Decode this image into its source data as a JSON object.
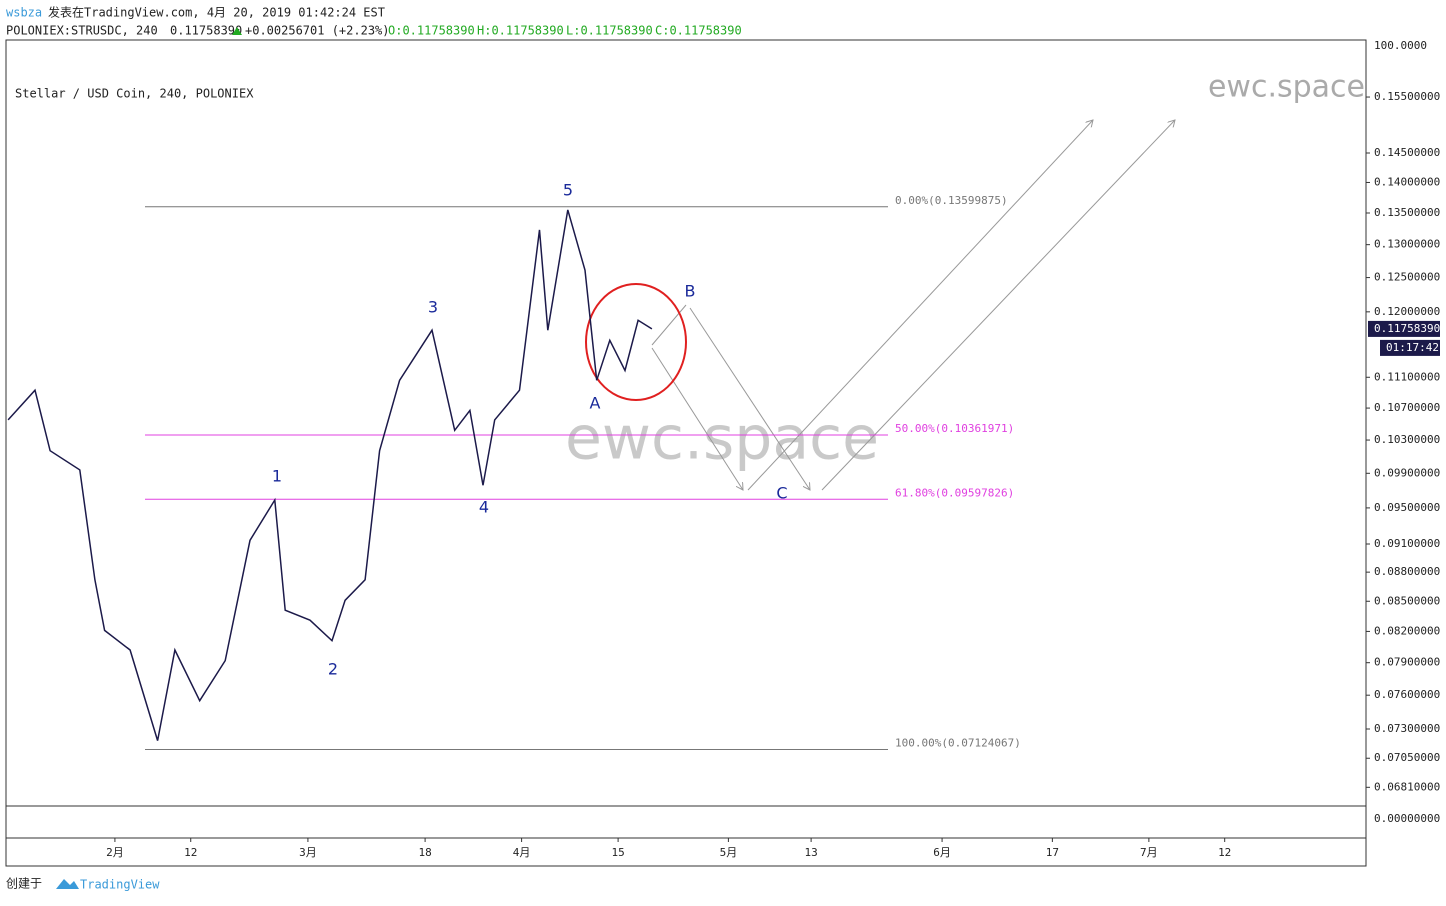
{
  "header": {
    "user": "wsbza",
    "published": "发表在TradingView.com, 4月 20, 2019 01:42:24 EST",
    "symbol": "POLONIEX:STRUSDC, 240",
    "last": "0.11758390",
    "change": "+0.00256701 (+2.23%)",
    "open": "O:0.11758390",
    "high": "H:0.11758390",
    "low": "L:0.11758390",
    "close": "C:0.11758390"
  },
  "chart_data": {
    "type": "line",
    "title": "Stellar / USD Coin, 240, POLONIEX",
    "watermark": "ewc.space",
    "log_scale": true,
    "xlim": [
      16.2,
      213.5
    ],
    "ylim": [
      0.0666,
      0.1659
    ],
    "xticks": [
      {
        "value": 32,
        "label": "2月"
      },
      {
        "value": 43,
        "label": "12"
      },
      {
        "value": 60,
        "label": "3月"
      },
      {
        "value": 77,
        "label": "18"
      },
      {
        "value": 91,
        "label": "4月"
      },
      {
        "value": 105,
        "label": "15"
      },
      {
        "value": 121,
        "label": "5月"
      },
      {
        "value": 133,
        "label": "13"
      },
      {
        "value": 152,
        "label": "6月"
      },
      {
        "value": 168,
        "label": "17"
      },
      {
        "value": 182,
        "label": "7月"
      },
      {
        "value": 193,
        "label": "12"
      }
    ],
    "yticks": [
      {
        "value": 0.155,
        "label": "0.15500000"
      },
      {
        "value": 0.145,
        "label": "0.14500000"
      },
      {
        "value": 0.14,
        "label": "0.14000000"
      },
      {
        "value": 0.135,
        "label": "0.13500000"
      },
      {
        "value": 0.13,
        "label": "0.13000000"
      },
      {
        "value": 0.125,
        "label": "0.12500000"
      },
      {
        "value": 0.12,
        "label": "0.12000000"
      },
      {
        "value": 0.111,
        "label": "0.11100000"
      },
      {
        "value": 0.107,
        "label": "0.10700000"
      },
      {
        "value": 0.103,
        "label": "0.10300000"
      },
      {
        "value": 0.099,
        "label": "0.09900000"
      },
      {
        "value": 0.095,
        "label": "0.09500000"
      },
      {
        "value": 0.091,
        "label": "0.09100000"
      },
      {
        "value": 0.088,
        "label": "0.08800000"
      },
      {
        "value": 0.085,
        "label": "0.08500000"
      },
      {
        "value": 0.082,
        "label": "0.08200000"
      },
      {
        "value": 0.079,
        "label": "0.07900000"
      },
      {
        "value": 0.076,
        "label": "0.07600000"
      },
      {
        "value": 0.073,
        "label": "0.07300000"
      },
      {
        "value": 0.0705,
        "label": "0.07050000"
      },
      {
        "value": 0.0681,
        "label": "0.06810000"
      }
    ],
    "scale_top_label": "100.0000",
    "scale_bottom_label": "0.00000000",
    "series": [
      {
        "name": "STRUSDC",
        "color": "#1c1a4a",
        "x": [
          16.5,
          20.4,
          22.6,
          26.9,
          29.1,
          30.5,
          34.2,
          38.2,
          40.7,
          44.3,
          48.0,
          51.6,
          55.2,
          56.7,
          60.3,
          63.5,
          65.4,
          68.3,
          70.4,
          73.3,
          78.0,
          81.3,
          83.5,
          85.4,
          87.1,
          90.7,
          93.6,
          94.8,
          97.7,
          100.2,
          101.9,
          103.8,
          106.0,
          107.9,
          109.9
        ],
        "values": [
          0.1055,
          0.1093,
          0.1017,
          0.0994,
          0.0872,
          0.0821,
          0.0802,
          0.072,
          0.0802,
          0.0755,
          0.0792,
          0.0914,
          0.0959,
          0.0841,
          0.0831,
          0.0811,
          0.0851,
          0.0872,
          0.1017,
          0.1106,
          0.1174,
          0.1042,
          0.1067,
          0.0976,
          0.1055,
          0.1093,
          0.1323,
          0.1174,
          0.1355,
          0.1261,
          0.1106,
          0.116,
          0.1119,
          0.1188,
          0.1175839
        ]
      }
    ],
    "last_price": {
      "value": 0.1175839,
      "label": "0.11758390"
    },
    "countdown": "01:17:42",
    "levels": [
      {
        "value": 0.13599875,
        "label": "0.00%(0.13599875)",
        "color": "#777777"
      },
      {
        "value": 0.10361971,
        "label": "50.00%(0.10361971)",
        "color": "#e040e0"
      },
      {
        "value": 0.09597826,
        "label": "61.80%(0.09597826)",
        "color": "#e040e0"
      },
      {
        "value": 0.07124067,
        "label": "100.00%(0.07124067)",
        "color": "#777777"
      }
    ],
    "wave_labels": [
      "1",
      "2",
      "3",
      "4",
      "5",
      "A",
      "B",
      "C"
    ]
  },
  "footer": {
    "created": "创建于",
    "brand": "TradingView"
  }
}
